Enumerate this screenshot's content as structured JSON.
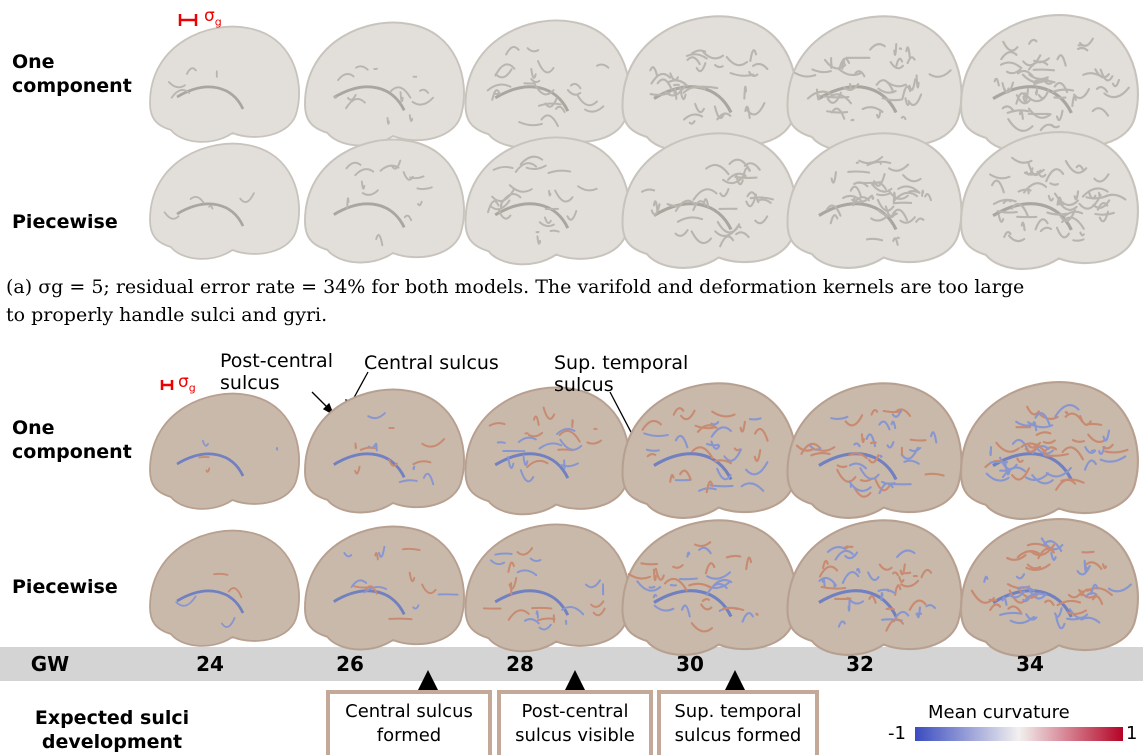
{
  "panel_a": {
    "scale_symbol": "σ",
    "scale_subscript": "g",
    "rows": [
      "One component",
      "Piecewise"
    ],
    "caption": [
      "(a) σg = 5; residual error rate = 34% for both models. The varifold and deformation kernels are too large",
      "to properly handle sulci and gyri."
    ]
  },
  "panel_b": {
    "scale_symbol": "σ",
    "scale_subscript": "g",
    "rows": [
      "One component",
      "Piecewise"
    ],
    "annotations": [
      "Post-central sulcus",
      "Central sulcus",
      "Sup. temporal sulcus"
    ]
  },
  "timeline": {
    "label": "GW",
    "weeks": [
      24,
      26,
      28,
      30,
      32,
      34
    ],
    "expected_label": "Expected sulci development",
    "events": [
      "Central sulcus formed",
      "Post-central sulcus visible",
      "Sup. temporal sulcus formed"
    ]
  },
  "colorbar": {
    "title": "Mean curvature",
    "min_label": "-1",
    "max_label": "1"
  }
}
